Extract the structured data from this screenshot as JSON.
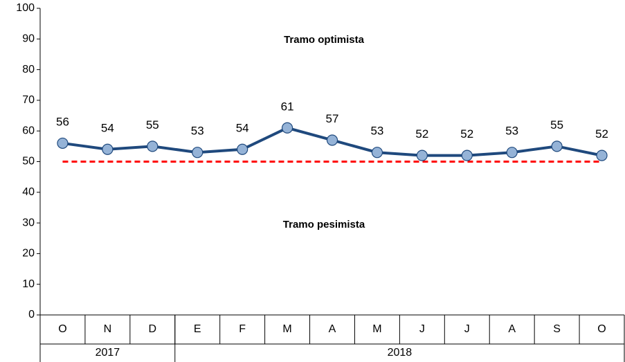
{
  "chart_data": {
    "type": "line",
    "categories": [
      "O",
      "N",
      "D",
      "E",
      "F",
      "M",
      "A",
      "M",
      "J",
      "J",
      "A",
      "S",
      "O"
    ],
    "year_groups": [
      {
        "label": "2017",
        "months": 3
      },
      {
        "label": "2018",
        "months": 10
      }
    ],
    "series": [
      {
        "color": "#1f497d",
        "marker_color": "#95b3d7",
        "values": [
          56,
          54,
          55,
          53,
          54,
          61,
          57,
          53,
          52,
          52,
          53,
          55,
          52
        ]
      }
    ],
    "reference_line": {
      "value": 50,
      "color": "#ff0000",
      "style": "dashed"
    },
    "annotations": [
      "Tramo optimista",
      "Tramo pesimista"
    ],
    "ylim": [
      0,
      100
    ],
    "yticks": [
      0,
      10,
      20,
      30,
      40,
      50,
      60,
      70,
      80,
      90,
      100
    ],
    "grid": false
  }
}
